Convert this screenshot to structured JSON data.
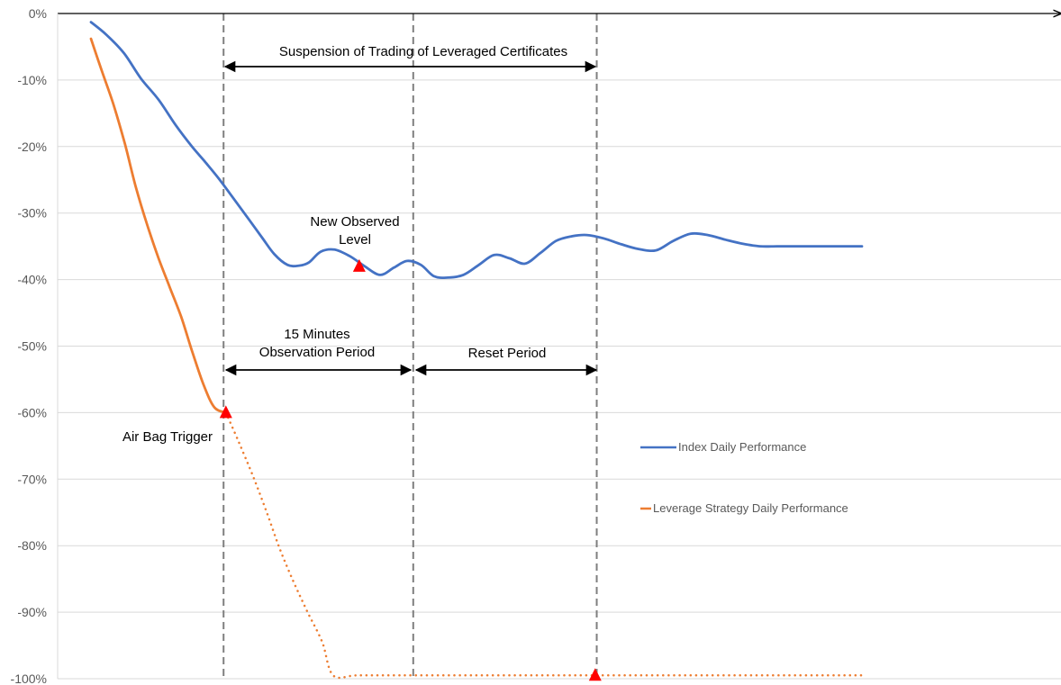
{
  "chart_data": {
    "type": "line",
    "ylim": [
      -100,
      0
    ],
    "xlim": [
      0,
      1
    ],
    "yticks": [
      "0%",
      "-10%",
      "-20%",
      "-30%",
      "-40%",
      "-50%",
      "-60%",
      "-70%",
      "-80%",
      "-90%",
      "-100%"
    ],
    "ytick_values": [
      0,
      -10,
      -20,
      -30,
      -40,
      -50,
      -60,
      -70,
      -80,
      -90,
      -100
    ],
    "grid": true,
    "legend_position": "right",
    "colors": {
      "index": "#4472C4",
      "leverage": "#ED7D31",
      "marker": "#FF0000",
      "guide": "#7F7F7F",
      "grid": "#D9D9D9"
    },
    "series": [
      {
        "name": "Index Daily Performance",
        "color": "#4472C4",
        "style": "solid",
        "x": [
          0.0,
          0.02,
          0.043,
          0.065,
          0.088,
          0.11,
          0.131,
          0.148,
          0.165,
          0.183,
          0.202,
          0.222,
          0.238,
          0.255,
          0.27,
          0.283,
          0.298,
          0.316,
          0.336,
          0.355,
          0.375,
          0.393,
          0.41,
          0.428,
          0.445,
          0.463,
          0.483,
          0.503,
          0.523,
          0.543,
          0.563,
          0.583,
          0.603,
          0.623,
          0.643,
          0.665,
          0.688,
          0.71,
          0.733,
          0.755,
          0.778,
          0.8,
          0.823,
          0.845,
          0.868,
          0.89,
          0.913,
          0.935,
          0.958,
          0.98,
          1.0
        ],
        "y": [
          -1.3,
          -3.2,
          -6.0,
          -9.8,
          -13.0,
          -16.8,
          -20.0,
          -22.3,
          -24.7,
          -27.5,
          -30.5,
          -33.7,
          -36.2,
          -37.8,
          -37.9,
          -37.4,
          -35.8,
          -35.5,
          -36.5,
          -38.0,
          -39.3,
          -38.2,
          -37.2,
          -37.8,
          -39.5,
          -39.7,
          -39.3,
          -37.8,
          -36.3,
          -36.8,
          -37.6,
          -36.0,
          -34.2,
          -33.5,
          -33.3,
          -33.8,
          -34.7,
          -35.4,
          -35.6,
          -34.2,
          -33.1,
          -33.3,
          -34.0,
          -34.6,
          -35.0,
          -35.0,
          -35.0,
          -35.0,
          -35.0,
          -35.0,
          -35.0
        ]
      },
      {
        "name": "Leverage Strategy Daily Performance",
        "color": "#ED7D31",
        "style": "solid",
        "x": [
          0.0,
          0.014,
          0.029,
          0.044,
          0.058,
          0.073,
          0.088,
          0.102,
          0.117,
          0.131,
          0.146,
          0.16,
          0.175
        ],
        "y": [
          -3.8,
          -8.6,
          -13.6,
          -19.6,
          -26.0,
          -31.8,
          -36.9,
          -41.1,
          -45.6,
          -50.7,
          -55.8,
          -59.2,
          -60.0
        ]
      },
      {
        "name": "",
        "color": "#ED7D31",
        "style": "dotted",
        "x": [
          0.175,
          0.192,
          0.21,
          0.228,
          0.245,
          0.263,
          0.281,
          0.3,
          0.314,
          0.345,
          0.4,
          0.5,
          0.6,
          0.7,
          0.8,
          0.9,
          1.0
        ],
        "y": [
          -60.0,
          -64.5,
          -69.5,
          -75.0,
          -80.5,
          -85.5,
          -90.0,
          -94.5,
          -99.5,
          -99.5,
          -99.5,
          -99.5,
          -99.5,
          -99.5,
          -99.5,
          -99.5,
          -99.5
        ]
      }
    ],
    "markers": [
      {
        "x": 0.175,
        "y": -60.0
      },
      {
        "x": 0.348,
        "y": -38.0
      },
      {
        "x": 0.654,
        "y": -99.5
      }
    ],
    "guides": [
      0.172,
      0.418,
      0.656
    ],
    "annotations": {
      "suspension": "Suspension of Trading of Leveraged Certificates",
      "new_level_line1": "New Observed",
      "new_level_line2": "Level",
      "obs_line1": "15 Minutes",
      "obs_line2": "Observation Period",
      "reset": "Reset Period",
      "airbag": "Air Bag Trigger"
    }
  }
}
